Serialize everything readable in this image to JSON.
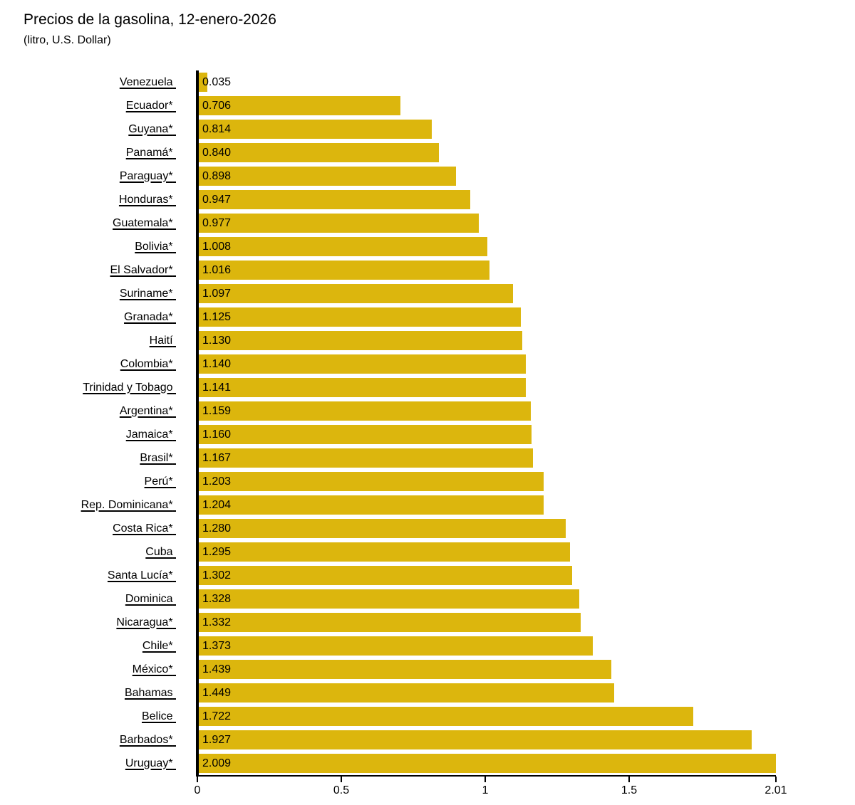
{
  "header": {
    "title": "Precios de la gasolina, 12-enero-2026",
    "subtitle": "(litro, U.S. Dollar)"
  },
  "chart_data": {
    "type": "bar",
    "orientation": "horizontal",
    "title": "Precios de la gasolina, 12-enero-2026",
    "subtitle": "(litro, U.S. Dollar)",
    "categories": [
      "Venezuela",
      "Ecuador*",
      "Guyana*",
      "Panamá*",
      "Paraguay*",
      "Honduras*",
      "Guatemala*",
      "Bolivia*",
      "El Salvador*",
      "Suriname*",
      "Granada*",
      "Haití",
      "Colombia*",
      "Trinidad y Tobago",
      "Argentina*",
      "Jamaica*",
      "Brasil*",
      "Perú*",
      "Rep. Dominicana*",
      "Costa Rica*",
      "Cuba",
      "Santa Lucía*",
      "Dominica",
      "Nicaragua*",
      "Chile*",
      "México*",
      "Bahamas",
      "Belice",
      "Barbados*",
      "Uruguay*"
    ],
    "values": [
      0.035,
      0.706,
      0.814,
      0.84,
      0.898,
      0.947,
      0.977,
      1.008,
      1.016,
      1.097,
      1.125,
      1.13,
      1.14,
      1.141,
      1.159,
      1.16,
      1.167,
      1.203,
      1.204,
      1.28,
      1.295,
      1.302,
      1.328,
      1.332,
      1.373,
      1.439,
      1.449,
      1.722,
      1.927,
      2.009
    ],
    "value_label_decimals": 3,
    "xlabel": "",
    "ylabel": "",
    "xlim": [
      0,
      2.01
    ],
    "x_ticks": [
      {
        "value": 0,
        "label": "0"
      },
      {
        "value": 0.5,
        "label": "0.5"
      },
      {
        "value": 1,
        "label": "1"
      },
      {
        "value": 1.5,
        "label": "1.5"
      },
      {
        "value": 2.01,
        "label": "2.01"
      }
    ],
    "bar_color": "#DCB60D",
    "axis_color": "#000000",
    "grid": false,
    "legend": false
  }
}
